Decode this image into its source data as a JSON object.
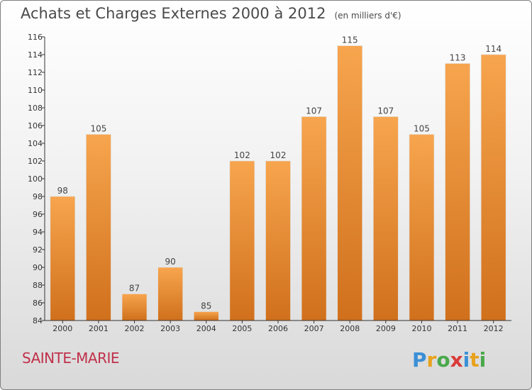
{
  "header": {
    "title": "Achats et Charges Externes 2000 à 2012",
    "unit": "(en milliers d'€)"
  },
  "footer": {
    "place": "SAINTE-MARIE",
    "logo_text": "Proxiti"
  },
  "colors": {
    "bar_light": "#f7a54e",
    "bar_dark": "#d0701c",
    "place_text": "#c0304a"
  },
  "chart_data": {
    "type": "bar",
    "title": "Achats et Charges Externes 2000 à 2012",
    "subtitle": "(en milliers d'€)",
    "xlabel": "",
    "ylabel": "",
    "categories": [
      "2000",
      "2001",
      "2002",
      "2003",
      "2004",
      "2005",
      "2006",
      "2007",
      "2008",
      "2009",
      "2010",
      "2011",
      "2012"
    ],
    "values": [
      98,
      105,
      87,
      90,
      85,
      102,
      102,
      107,
      115,
      107,
      105,
      113,
      114
    ],
    "ylim": [
      84,
      116
    ],
    "yticks": [
      84,
      86,
      88,
      90,
      92,
      94,
      96,
      98,
      100,
      102,
      104,
      106,
      108,
      110,
      112,
      114,
      116
    ],
    "grid": false,
    "legend": "none"
  }
}
